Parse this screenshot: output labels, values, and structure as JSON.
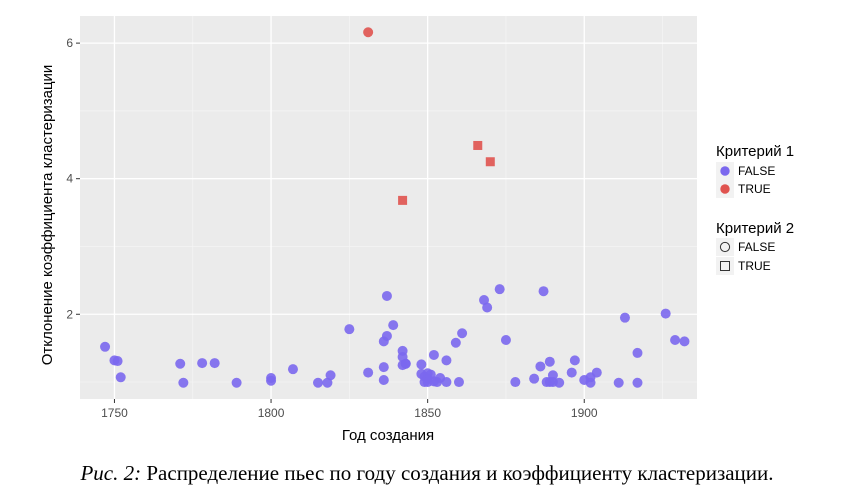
{
  "chart_data": {
    "type": "scatter",
    "title": "",
    "xlabel": "Год создания",
    "ylabel": "Отклонение коэффициента кластеризации",
    "xlim": [
      1739,
      1936
    ],
    "ylim": [
      0.75,
      6.4
    ],
    "xticks": [
      1750,
      1800,
      1850,
      1900
    ],
    "yticks": [
      2,
      4,
      6
    ],
    "grid": true,
    "legend_position": "right",
    "legends": [
      {
        "title": "Критерий 1",
        "aesthetic": "color",
        "entries": [
          {
            "label": "FALSE",
            "color": "#7b68ee"
          },
          {
            "label": "TRUE",
            "color": "#e0534f"
          }
        ]
      },
      {
        "title": "Критерий 2",
        "aesthetic": "shape",
        "entries": [
          {
            "label": "FALSE",
            "shape": "circle"
          },
          {
            "label": "TRUE",
            "shape": "square"
          }
        ]
      }
    ],
    "series": [
      {
        "color_key": "FALSE",
        "shape_key": "FALSE",
        "x": [
          1747,
          1750,
          1751,
          1752,
          1771,
          1772,
          1778,
          1782,
          1789,
          1800,
          1800,
          1807,
          1815,
          1818,
          1819,
          1825,
          1831,
          1836,
          1836,
          1836,
          1837,
          1837,
          1839,
          1842,
          1842,
          1842,
          1843,
          1843,
          1848,
          1848,
          1849,
          1849,
          1850,
          1850,
          1850,
          1851,
          1852,
          1852,
          1853,
          1854,
          1856,
          1856,
          1859,
          1860,
          1861,
          1868,
          1869,
          1873,
          1875,
          1878,
          1884,
          1886,
          1887,
          1888,
          1889,
          1889,
          1890,
          1890,
          1892,
          1896,
          1897,
          1900,
          1902,
          1902,
          1904,
          1911,
          1913,
          1917,
          1917,
          1926,
          1929,
          1932
        ],
        "y": [
          1.52,
          1.32,
          1.31,
          1.07,
          1.27,
          0.99,
          1.28,
          1.28,
          0.99,
          1.02,
          1.06,
          1.19,
          0.99,
          0.99,
          1.1,
          1.78,
          1.14,
          1.6,
          1.22,
          1.03,
          2.27,
          1.68,
          1.84,
          1.25,
          1.46,
          1.37,
          1.27,
          1.27,
          1.26,
          1.12,
          1.08,
          1.0,
          1.05,
          1.0,
          1.13,
          1.11,
          1.01,
          1.4,
          1.0,
          1.06,
          1.0,
          1.32,
          1.58,
          1.0,
          1.72,
          2.21,
          2.1,
          2.37,
          1.62,
          1.0,
          1.05,
          1.23,
          2.34,
          1.0,
          1.3,
          1.0,
          1.1,
          1.0,
          0.99,
          1.14,
          1.32,
          1.03,
          0.99,
          1.07,
          1.14,
          0.99,
          1.95,
          1.43,
          0.99,
          2.01,
          1.62,
          1.6
        ]
      },
      {
        "color_key": "TRUE",
        "shape_key": "FALSE",
        "x": [
          1831
        ],
        "y": [
          6.16
        ]
      },
      {
        "color_key": "TRUE",
        "shape_key": "TRUE",
        "x": [
          1842,
          1866,
          1870
        ],
        "y": [
          3.68,
          4.49,
          4.25
        ]
      }
    ]
  },
  "caption": {
    "prefix": "Рис. 2:",
    "text": " Распределение пьес по году создания и коэффициенту кластеризации."
  }
}
